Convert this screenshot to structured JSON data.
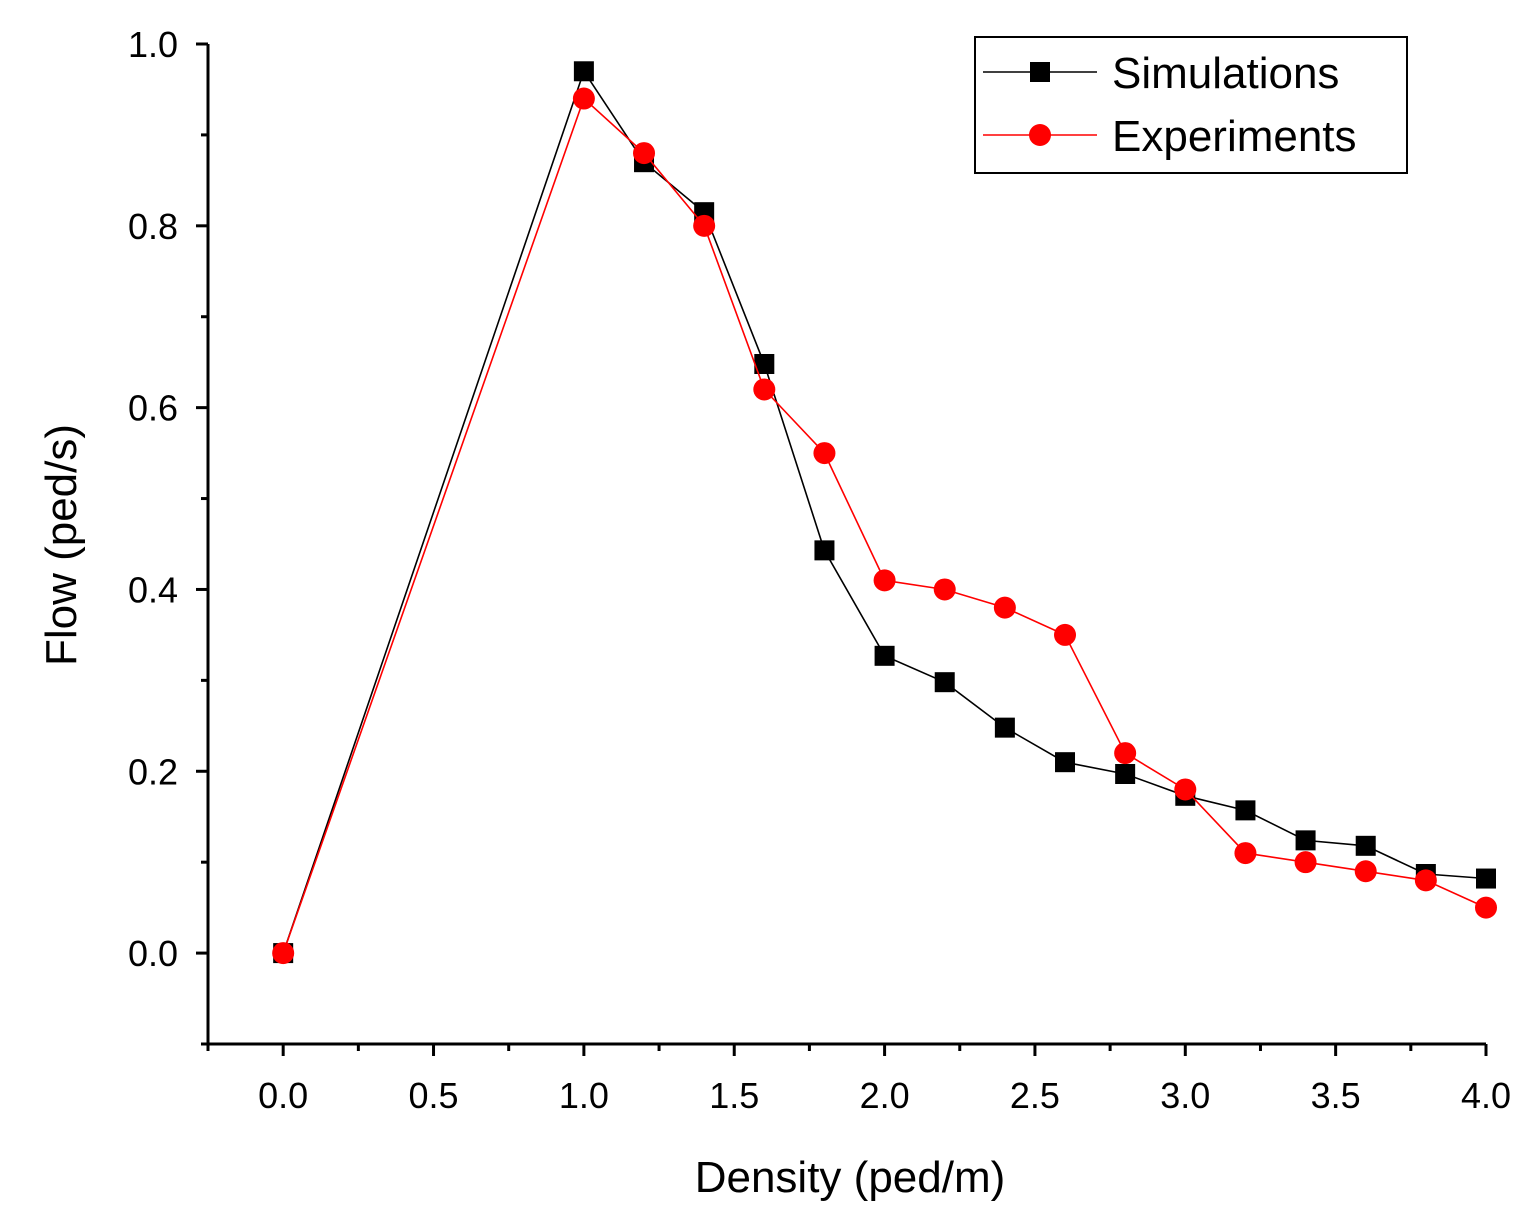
{
  "chart_data": {
    "type": "line",
    "title": "",
    "xlabel": "Density (ped/m)",
    "ylabel": "Flow (ped/s)",
    "xlim": [
      -0.25,
      4.0
    ],
    "ylim": [
      -0.1,
      1.0
    ],
    "xticks": [
      "0.0",
      "0.5",
      "1.0",
      "1.5",
      "2.0",
      "2.5",
      "3.0",
      "3.5",
      "4.0"
    ],
    "yticks": [
      "0.0",
      "0.2",
      "0.4",
      "0.6",
      "0.8",
      "1.0"
    ],
    "grid": false,
    "legend_position": "top-right",
    "series": [
      {
        "name": "Simulations",
        "color": "#000000",
        "marker": "square",
        "x": [
          0.0,
          1.0,
          1.2,
          1.4,
          1.6,
          1.8,
          2.0,
          2.2,
          2.4,
          2.6,
          2.8,
          3.0,
          3.2,
          3.4,
          3.6,
          3.8,
          4.0
        ],
        "y": [
          0.0,
          0.97,
          0.87,
          0.815,
          0.648,
          0.443,
          0.327,
          0.298,
          0.248,
          0.21,
          0.197,
          0.173,
          0.157,
          0.124,
          0.118,
          0.087,
          0.082
        ]
      },
      {
        "name": "Experiments",
        "color": "#ff0000",
        "marker": "circle",
        "x": [
          0.0,
          1.0,
          1.2,
          1.4,
          1.6,
          1.8,
          2.0,
          2.2,
          2.4,
          2.6,
          2.8,
          3.0,
          3.2,
          3.4,
          3.6,
          3.8,
          4.0
        ],
        "y": [
          0.0,
          0.94,
          0.88,
          0.8,
          0.62,
          0.55,
          0.41,
          0.4,
          0.38,
          0.35,
          0.22,
          0.18,
          0.11,
          0.1,
          0.09,
          0.08,
          0.05
        ]
      }
    ]
  }
}
